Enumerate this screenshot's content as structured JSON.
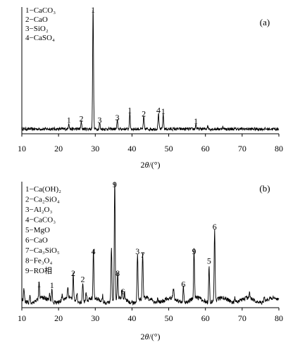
{
  "chart_data": [
    {
      "type": "line",
      "panel_label": "(a)",
      "xlabel_prefix": "2",
      "xlabel_theta": "θ",
      "xlabel_unit": "/(°)",
      "ylabel": "",
      "xlim": [
        10,
        80
      ],
      "x_ticks": [
        "10",
        "20",
        "30",
        "40",
        "50",
        "60",
        "70",
        "80"
      ],
      "legend": [
        "1−CaCO₃",
        "2−CaO",
        "3−SiO₂",
        "4−CaSO₄"
      ],
      "series": [
        {
          "peaks": [
            [
              22.8,
              0.05
            ],
            [
              26.2,
              0.06
            ],
            [
              29.4,
              1.0
            ],
            [
              31.2,
              0.05
            ],
            [
              36.0,
              0.07
            ],
            [
              39.4,
              0.13
            ],
            [
              43.2,
              0.1
            ],
            [
              47.2,
              0.13
            ],
            [
              48.5,
              0.12
            ],
            [
              57.4,
              0.04
            ],
            [
              60.6,
              0.03
            ],
            [
              64.7,
              0.02
            ]
          ]
        }
      ],
      "annotations": [
        {
          "x": 22.8,
          "text": "1"
        },
        {
          "x": 26.2,
          "text": "2"
        },
        {
          "x": 29.4,
          "text": "1"
        },
        {
          "x": 31.2,
          "text": "3"
        },
        {
          "x": 36.0,
          "text": "3"
        },
        {
          "x": 39.4,
          "text": "1"
        },
        {
          "x": 43.2,
          "text": "2"
        },
        {
          "x": 47.2,
          "text": "4"
        },
        {
          "x": 48.5,
          "text": "1"
        },
        {
          "x": 57.4,
          "text": "1"
        }
      ]
    },
    {
      "type": "line",
      "panel_label": "(b)",
      "xlabel_prefix": "2",
      "xlabel_theta": "θ",
      "xlabel_unit": "/(°)",
      "ylabel": "",
      "xlim": [
        10,
        80
      ],
      "x_ticks": [
        "10",
        "20",
        "30",
        "40",
        "50",
        "60",
        "70",
        "80"
      ],
      "legend": [
        "1−Ca(OH)₂",
        "2−Ca₂SiO₄",
        "3−Al₂O₃",
        "4−CaCO₃",
        "5−MgO",
        "6−CaO",
        "7−Ca₃SiO₅",
        "8−Fe₃O₄",
        "9−RO相"
      ],
      "series": [
        {
          "peaks": [
            [
              10.6,
              0.1
            ],
            [
              12.2,
              0.06
            ],
            [
              14.7,
              0.13
            ],
            [
              17.6,
              0.05
            ],
            [
              18.2,
              0.12
            ],
            [
              21.0,
              0.05
            ],
            [
              22.5,
              0.09
            ],
            [
              24.0,
              0.22
            ],
            [
              25.0,
              0.07
            ],
            [
              26.6,
              0.17
            ],
            [
              27.5,
              0.06
            ],
            [
              29.5,
              0.4
            ],
            [
              32.0,
              0.05
            ],
            [
              34.4,
              0.45
            ],
            [
              35.3,
              1.0
            ],
            [
              36.1,
              0.22
            ],
            [
              37.3,
              0.07
            ],
            [
              38.0,
              0.05
            ],
            [
              41.5,
              0.4
            ],
            [
              42.9,
              0.37
            ],
            [
              47.0,
              0.04
            ],
            [
              51.3,
              0.08
            ],
            [
              54.0,
              0.13
            ],
            [
              56.9,
              0.4
            ],
            [
              61.0,
              0.32
            ],
            [
              62.5,
              0.6
            ],
            [
              68.0,
              0.04
            ],
            [
              72.0,
              0.05
            ],
            [
              76.0,
              0.04
            ]
          ]
        }
      ],
      "annotations": [
        {
          "x": 14.7,
          "text": "1"
        },
        {
          "x": 18.2,
          "text": "1"
        },
        {
          "x": 24.0,
          "text": "2"
        },
        {
          "x": 26.6,
          "text": "2"
        },
        {
          "x": 29.5,
          "text": "4"
        },
        {
          "x": 35.3,
          "text": "9"
        },
        {
          "x": 36.1,
          "text": "8"
        },
        {
          "x": 37.5,
          "text": "6"
        },
        {
          "x": 41.5,
          "text": "3"
        },
        {
          "x": 42.9,
          "text": "7"
        },
        {
          "x": 54.0,
          "text": "6"
        },
        {
          "x": 56.9,
          "text": "9"
        },
        {
          "x": 61.0,
          "text": "5"
        },
        {
          "x": 62.5,
          "text": "6"
        }
      ]
    }
  ]
}
